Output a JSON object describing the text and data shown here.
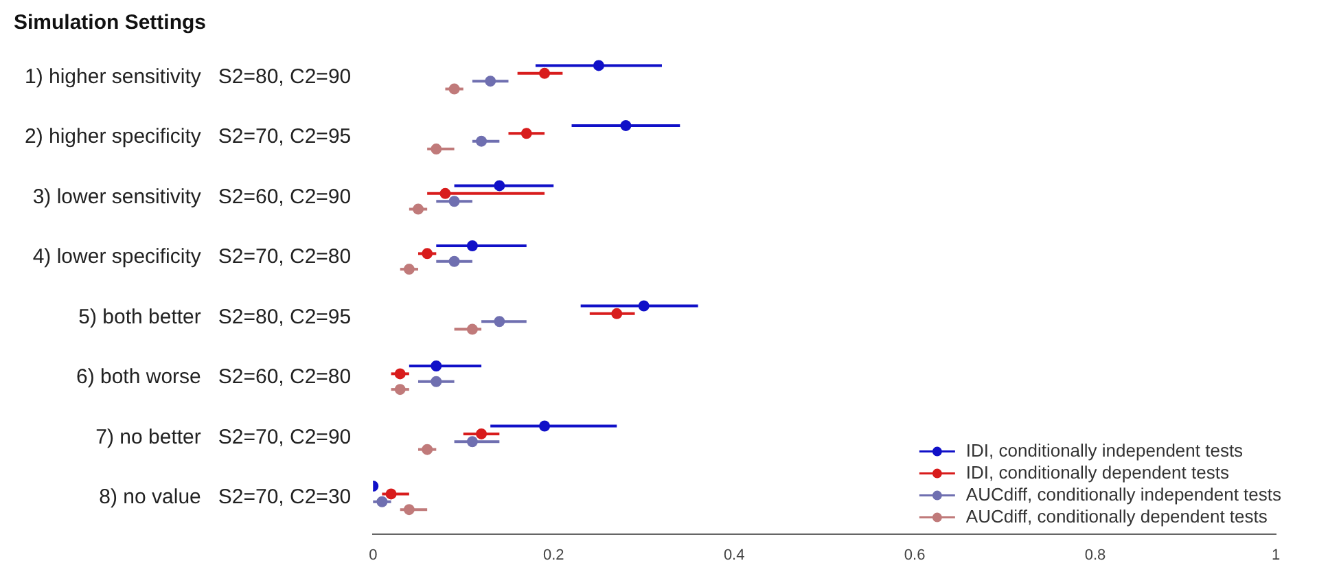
{
  "chart_data": {
    "type": "scatter",
    "orientation": "horizontal",
    "title": "Simulation Settings",
    "categories": [
      "1) higher sensitivity   S2=80, C2=90",
      "2) higher specificity   S2=70, C2=95",
      "3) lower sensitivity   S2=60, C2=90",
      "4) lower specificity   S2=70, C2=80",
      "5) both better   S2=80, C2=95",
      "6) both worse   S2=60, C2=80",
      "7) no better   S2=70, C2=90",
      "8) no value   S2=70, C2=30"
    ],
    "series": [
      {
        "name": "IDI, conditionally independent tests",
        "color": "#1010c8",
        "values": [
          0.25,
          0.28,
          0.14,
          0.11,
          0.3,
          0.07,
          0.19,
          0.0
        ],
        "errors": [
          [
            0.18,
            0.32
          ],
          [
            0.22,
            0.34
          ],
          [
            0.09,
            0.2
          ],
          [
            0.07,
            0.17
          ],
          [
            0.23,
            0.36
          ],
          [
            0.04,
            0.12
          ],
          [
            0.13,
            0.27
          ],
          null
        ]
      },
      {
        "name": "IDI, conditionally dependent tests",
        "color": "#d81c1c",
        "values": [
          0.19,
          0.17,
          0.08,
          0.06,
          0.27,
          0.03,
          0.12,
          0.02
        ],
        "errors": [
          [
            0.16,
            0.21
          ],
          [
            0.15,
            0.19
          ],
          [
            0.06,
            0.19
          ],
          [
            0.05,
            0.07
          ],
          [
            0.24,
            0.29
          ],
          [
            0.02,
            0.04
          ],
          [
            0.1,
            0.14
          ],
          [
            0.01,
            0.04
          ]
        ]
      },
      {
        "name": "AUCdiff, conditionally independent tests",
        "color": "#6f6fb0",
        "values": [
          0.13,
          0.12,
          0.09,
          0.09,
          0.14,
          0.07,
          0.11,
          0.01
        ],
        "errors": [
          [
            0.11,
            0.15
          ],
          [
            0.11,
            0.14
          ],
          [
            0.07,
            0.11
          ],
          [
            0.07,
            0.11
          ],
          [
            0.12,
            0.17
          ],
          [
            0.05,
            0.09
          ],
          [
            0.09,
            0.14
          ],
          [
            0.0,
            0.02
          ]
        ]
      },
      {
        "name": "AUCdiff, conditionally dependent tests",
        "color": "#c07a7a",
        "values": [
          0.09,
          0.07,
          0.05,
          0.04,
          0.11,
          0.03,
          0.06,
          0.04
        ],
        "errors": [
          [
            0.08,
            0.1
          ],
          [
            0.06,
            0.09
          ],
          [
            0.04,
            0.06
          ],
          [
            0.03,
            0.05
          ],
          [
            0.09,
            0.12
          ],
          [
            0.02,
            0.04
          ],
          [
            0.05,
            0.07
          ],
          [
            0.03,
            0.06
          ]
        ]
      }
    ],
    "xlim": [
      0,
      1
    ],
    "xticks": [
      0,
      0.2,
      0.4,
      0.6,
      0.8,
      1
    ],
    "marker": "circle",
    "legend": "bottom right",
    "grid": false
  }
}
